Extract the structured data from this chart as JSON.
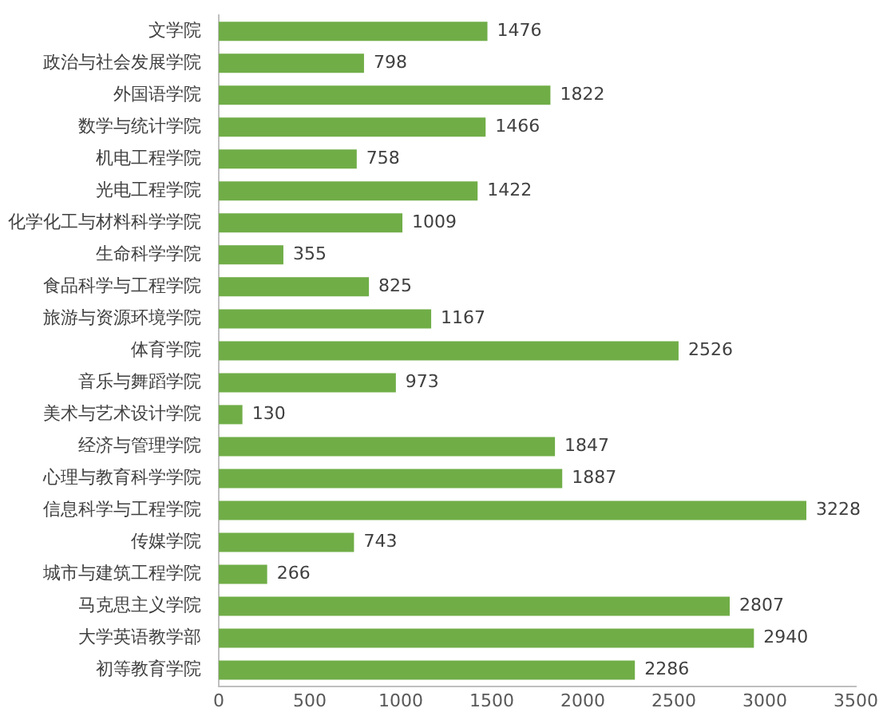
{
  "chart_data": {
    "type": "bar",
    "orientation": "horizontal",
    "categories": [
      "文学院",
      "政治与社会发展学院",
      "外国语学院",
      "数学与统计学院",
      "机电工程学院",
      "光电工程学院",
      "化学化工与材料科学学院",
      "生命科学学院",
      "食品科学与工程学院",
      "旅游与资源环境学院",
      "体育学院",
      "音乐与舞蹈学院",
      "美术与艺术设计学院",
      "经济与管理学院",
      "心理与教育科学学院",
      "信息科学与工程学院",
      "传媒学院",
      "城市与建筑工程学院",
      "马克思主义学院",
      "大学英语教学部",
      "初等教育学院"
    ],
    "values": [
      1476,
      798,
      1822,
      1466,
      758,
      1422,
      1009,
      355,
      825,
      1167,
      2526,
      973,
      130,
      1847,
      1887,
      3228,
      743,
      266,
      2807,
      2940,
      2286
    ],
    "color": "#70ad47",
    "xlim": [
      0,
      3500
    ],
    "xticks": [
      0,
      500,
      1000,
      1500,
      2000,
      2500,
      3000,
      3500
    ],
    "grid": false,
    "legend": false,
    "data_labels": true
  }
}
